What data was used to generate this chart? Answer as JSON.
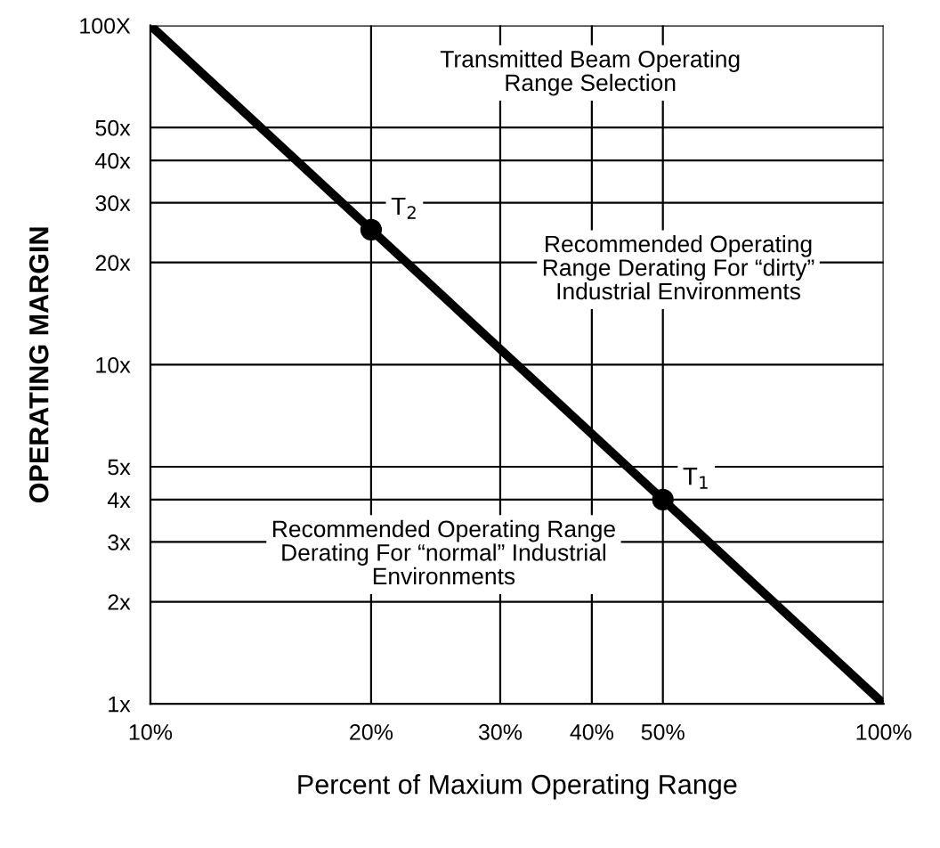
{
  "chart_data": {
    "type": "line",
    "xlabel": "Percent of Maxium Operating Range",
    "ylabel": "OPERATING MARGIN",
    "log": "xy",
    "grid": true,
    "line_style": "solid",
    "xlim": [
      10,
      100
    ],
    "ylim": [
      1,
      100
    ],
    "xticks": [
      {
        "value": 10,
        "label": "10%"
      },
      {
        "value": 20,
        "label": "20%"
      },
      {
        "value": 30,
        "label": "30%"
      },
      {
        "value": 40,
        "label": "40%"
      },
      {
        "value": 50,
        "label": "50%"
      },
      {
        "value": 100,
        "label": "100%"
      }
    ],
    "yticks": [
      {
        "value": 1,
        "label": "1x"
      },
      {
        "value": 2,
        "label": "2x"
      },
      {
        "value": 3,
        "label": "3x"
      },
      {
        "value": 4,
        "label": "4x"
      },
      {
        "value": 5,
        "label": "5x"
      },
      {
        "value": 10,
        "label": "10x"
      },
      {
        "value": 20,
        "label": "20x"
      },
      {
        "value": 30,
        "label": "30x"
      },
      {
        "value": 40,
        "label": "40x"
      },
      {
        "value": 50,
        "label": "50x"
      },
      {
        "value": 100,
        "label": "100X"
      }
    ],
    "series": [
      {
        "color": "#000000",
        "marker": "none",
        "x": [
          10,
          100
        ],
        "values": [
          100,
          1
        ]
      },
      {
        "type": "scatter",
        "color": "#000000",
        "marker": "circle",
        "x": [
          20,
          50
        ],
        "values": [
          25,
          4
        ]
      }
    ],
    "annotations": [
      {
        "text": "T$_{2}$",
        "x": 20,
        "y": 25
      },
      {
        "text": "T$_{1}$",
        "x": 50,
        "y": 4
      },
      "Transmitted Beam Operating\nRange Selection",
      "Recommended Operating\nRange Derating For “dirty”\nIndustrial Environments",
      "Recommended Operating Range\nDerating For “normal” Industrial\nEnvironments"
    ]
  }
}
